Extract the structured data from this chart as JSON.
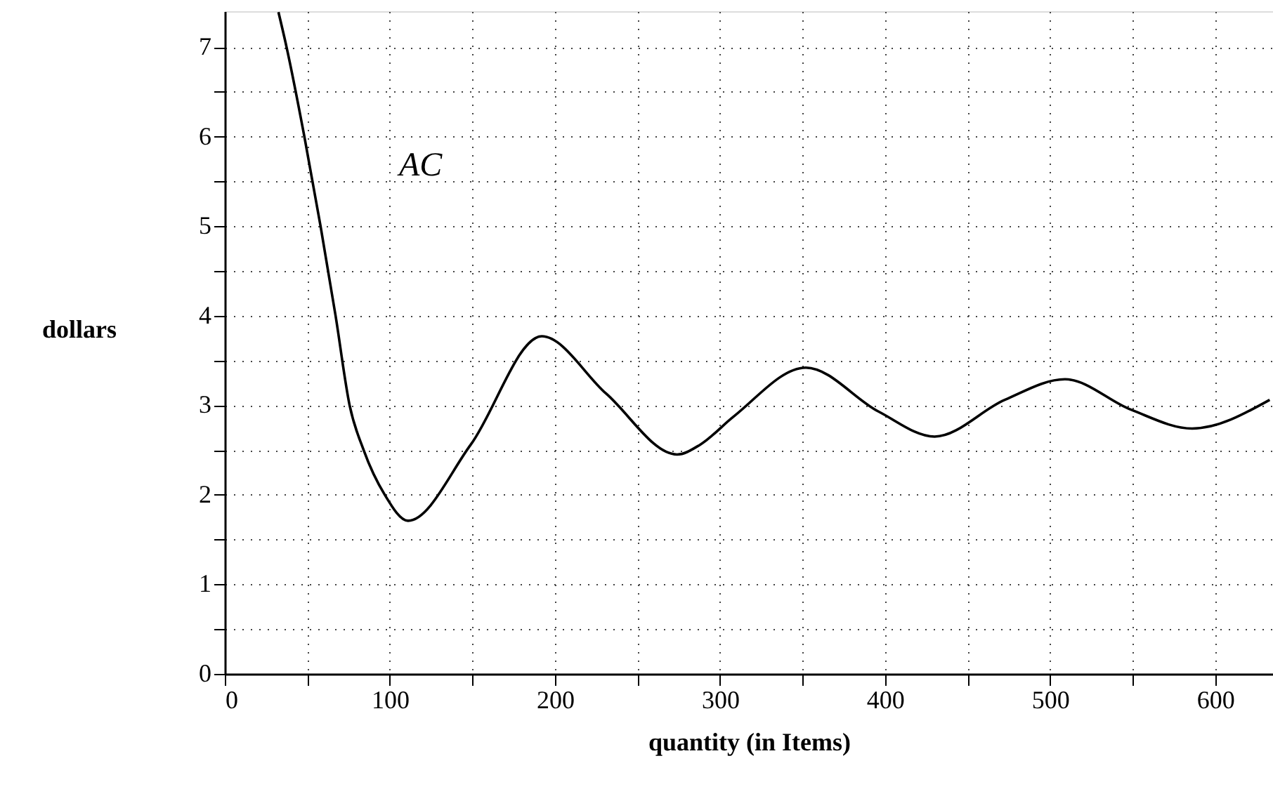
{
  "chart_data": {
    "type": "line",
    "xlabel": "quantity (in Items)",
    "ylabel": "dollars",
    "x": [
      32.5,
      37.4,
      48.2,
      58,
      67.1,
      75.6,
      84.1,
      96.9,
      111,
      149,
      192,
      231,
      274,
      288,
      308,
      352,
      396,
      430,
      472.5,
      509,
      549,
      586,
      633
    ],
    "series": [
      {
        "color": "#000000",
        "values": [
          7.39,
          7,
          6,
          5,
          4,
          3,
          2.5,
          2,
          1.71,
          2.56,
          3.77,
          3.13,
          2.45,
          2.56,
          2.87,
          3.42,
          2.93,
          2.65,
          3.06,
          3.29,
          2.95,
          2.74,
          3.06
        ]
      }
    ],
    "annotations": [
      "AC"
    ],
    "xlim": [
      0,
      635
    ],
    "ylim": [
      0,
      7.4
    ],
    "xticks": [
      0,
      {
        "value": 50,
        "label": null
      },
      100,
      {
        "value": 150,
        "label": null
      },
      200,
      {
        "value": 250,
        "label": null
      },
      300,
      {
        "value": 350,
        "label": null
      },
      400,
      {
        "value": 450,
        "label": null
      },
      500,
      {
        "value": 550,
        "label": null
      },
      600
    ],
    "yticks": [
      0,
      {
        "value": 0.5,
        "label": null
      },
      1,
      {
        "value": 1.5,
        "label": null
      },
      2,
      {
        "value": 2.5,
        "label": null
      },
      3,
      {
        "value": 3.5,
        "label": null
      },
      4,
      {
        "value": 4.5,
        "label": null
      },
      5,
      {
        "value": 5.5,
        "label": null
      },
      6,
      {
        "value": 6.5,
        "label": null
      },
      7
    ],
    "grid": true,
    "line_style": "solid",
    "marker": "none"
  }
}
